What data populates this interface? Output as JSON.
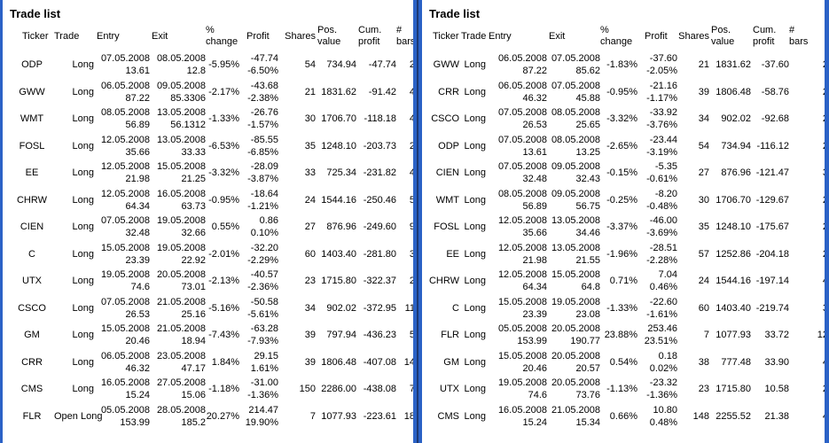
{
  "colors": {
    "panel_border": "#2b62c6",
    "panel_divider": "#1b3873",
    "text": "#000000",
    "background": "#ffffff"
  },
  "panels": [
    {
      "title": "Trade list",
      "columns": [
        "Ticker",
        "Trade",
        "Entry",
        "Exit",
        "%\nchange",
        "Profit",
        "Shares",
        "Pos.\nvalue",
        "Cum.\nprofit",
        "#\nbars"
      ],
      "rows": [
        {
          "ticker": "ODP",
          "trade": "Long",
          "entry_date": "07.05.2008",
          "entry_price": "13.61",
          "exit_date": "08.05.2008",
          "exit_price": "12.8",
          "pct_change": "-5.95%",
          "profit": "-47.74",
          "profit_pct": "-6.50%",
          "shares": "54",
          "pos_value": "734.94",
          "cum_profit": "-47.74",
          "bars": "2"
        },
        {
          "ticker": "GWW",
          "trade": "Long",
          "entry_date": "06.05.2008",
          "entry_price": "87.22",
          "exit_date": "09.05.2008",
          "exit_price": "85.3306",
          "pct_change": "-2.17%",
          "profit": "-43.68",
          "profit_pct": "-2.38%",
          "shares": "21",
          "pos_value": "1831.62",
          "cum_profit": "-91.42",
          "bars": "4"
        },
        {
          "ticker": "WMT",
          "trade": "Long",
          "entry_date": "08.05.2008",
          "entry_price": "56.89",
          "exit_date": "13.05.2008",
          "exit_price": "56.1312",
          "pct_change": "-1.33%",
          "profit": "-26.76",
          "profit_pct": "-1.57%",
          "shares": "30",
          "pos_value": "1706.70",
          "cum_profit": "-118.18",
          "bars": "4"
        },
        {
          "ticker": "FOSL",
          "trade": "Long",
          "entry_date": "12.05.2008",
          "entry_price": "35.66",
          "exit_date": "13.05.2008",
          "exit_price": "33.33",
          "pct_change": "-6.53%",
          "profit": "-85.55",
          "profit_pct": "-6.85%",
          "shares": "35",
          "pos_value": "1248.10",
          "cum_profit": "-203.73",
          "bars": "2"
        },
        {
          "ticker": "EE",
          "trade": "Long",
          "entry_date": "12.05.2008",
          "entry_price": "21.98",
          "exit_date": "15.05.2008",
          "exit_price": "21.25",
          "pct_change": "-3.32%",
          "profit": "-28.09",
          "profit_pct": "-3.87%",
          "shares": "33",
          "pos_value": "725.34",
          "cum_profit": "-231.82",
          "bars": "4"
        },
        {
          "ticker": "CHRW",
          "trade": "Long",
          "entry_date": "12.05.2008",
          "entry_price": "64.34",
          "exit_date": "16.05.2008",
          "exit_price": "63.73",
          "pct_change": "-0.95%",
          "profit": "-18.64",
          "profit_pct": "-1.21%",
          "shares": "24",
          "pos_value": "1544.16",
          "cum_profit": "-250.46",
          "bars": "5"
        },
        {
          "ticker": "CIEN",
          "trade": "Long",
          "entry_date": "07.05.2008",
          "entry_price": "32.48",
          "exit_date": "19.05.2008",
          "exit_price": "32.66",
          "pct_change": "0.55%",
          "profit": "0.86",
          "profit_pct": "0.10%",
          "shares": "27",
          "pos_value": "876.96",
          "cum_profit": "-249.60",
          "bars": "9"
        },
        {
          "ticker": "C",
          "trade": "Long",
          "entry_date": "15.05.2008",
          "entry_price": "23.39",
          "exit_date": "19.05.2008",
          "exit_price": "22.92",
          "pct_change": "-2.01%",
          "profit": "-32.20",
          "profit_pct": "-2.29%",
          "shares": "60",
          "pos_value": "1403.40",
          "cum_profit": "-281.80",
          "bars": "3"
        },
        {
          "ticker": "UTX",
          "trade": "Long",
          "entry_date": "19.05.2008",
          "entry_price": "74.6",
          "exit_date": "20.05.2008",
          "exit_price": "73.01",
          "pct_change": "-2.13%",
          "profit": "-40.57",
          "profit_pct": "-2.36%",
          "shares": "23",
          "pos_value": "1715.80",
          "cum_profit": "-322.37",
          "bars": "2"
        },
        {
          "ticker": "CSCO",
          "trade": "Long",
          "entry_date": "07.05.2008",
          "entry_price": "26.53",
          "exit_date": "21.05.2008",
          "exit_price": "25.16",
          "pct_change": "-5.16%",
          "profit": "-50.58",
          "profit_pct": "-5.61%",
          "shares": "34",
          "pos_value": "902.02",
          "cum_profit": "-372.95",
          "bars": "11"
        },
        {
          "ticker": "GM",
          "trade": "Long",
          "entry_date": "15.05.2008",
          "entry_price": "20.46",
          "exit_date": "21.05.2008",
          "exit_price": "18.94",
          "pct_change": "-7.43%",
          "profit": "-63.28",
          "profit_pct": "-7.93%",
          "shares": "39",
          "pos_value": "797.94",
          "cum_profit": "-436.23",
          "bars": "5"
        },
        {
          "ticker": "CRR",
          "trade": "Long",
          "entry_date": "06.05.2008",
          "entry_price": "46.32",
          "exit_date": "23.05.2008",
          "exit_price": "47.17",
          "pct_change": "1.84%",
          "profit": "29.15",
          "profit_pct": "1.61%",
          "shares": "39",
          "pos_value": "1806.48",
          "cum_profit": "-407.08",
          "bars": "14"
        },
        {
          "ticker": "CMS",
          "trade": "Long",
          "entry_date": "16.05.2008",
          "entry_price": "15.24",
          "exit_date": "27.05.2008",
          "exit_price": "15.06",
          "pct_change": "-1.18%",
          "profit": "-31.00",
          "profit_pct": "-1.36%",
          "shares": "150",
          "pos_value": "2286.00",
          "cum_profit": "-438.08",
          "bars": "7"
        },
        {
          "ticker": "FLR",
          "trade": "Open Long",
          "entry_date": "05.05.2008",
          "entry_price": "153.99",
          "exit_date": "28.05.2008",
          "exit_price": "185.2",
          "pct_change": "20.27%",
          "profit": "214.47",
          "profit_pct": "19.90%",
          "shares": "7",
          "pos_value": "1077.93",
          "cum_profit": "-223.61",
          "bars": "18"
        }
      ]
    },
    {
      "title": "Trade list",
      "columns": [
        "Ticker",
        "Trade",
        "Entry",
        "Exit",
        "%\nchange",
        "Profit",
        "Shares",
        "Pos.\nvalue",
        "Cum.\nprofit",
        "#\nbars"
      ],
      "rows": [
        {
          "ticker": "GWW",
          "trade": "Long",
          "entry_date": "06.05.2008",
          "entry_price": "87.22",
          "exit_date": "07.05.2008",
          "exit_price": "85.62",
          "pct_change": "-1.83%",
          "profit": "-37.60",
          "profit_pct": "-2.05%",
          "shares": "21",
          "pos_value": "1831.62",
          "cum_profit": "-37.60",
          "bars": "2"
        },
        {
          "ticker": "CRR",
          "trade": "Long",
          "entry_date": "06.05.2008",
          "entry_price": "46.32",
          "exit_date": "07.05.2008",
          "exit_price": "45.88",
          "pct_change": "-0.95%",
          "profit": "-21.16",
          "profit_pct": "-1.17%",
          "shares": "39",
          "pos_value": "1806.48",
          "cum_profit": "-58.76",
          "bars": "2"
        },
        {
          "ticker": "CSCO",
          "trade": "Long",
          "entry_date": "07.05.2008",
          "entry_price": "26.53",
          "exit_date": "08.05.2008",
          "exit_price": "25.65",
          "pct_change": "-3.32%",
          "profit": "-33.92",
          "profit_pct": "-3.76%",
          "shares": "34",
          "pos_value": "902.02",
          "cum_profit": "-92.68",
          "bars": "2"
        },
        {
          "ticker": "ODP",
          "trade": "Long",
          "entry_date": "07.05.2008",
          "entry_price": "13.61",
          "exit_date": "08.05.2008",
          "exit_price": "13.25",
          "pct_change": "-2.65%",
          "profit": "-23.44",
          "profit_pct": "-3.19%",
          "shares": "54",
          "pos_value": "734.94",
          "cum_profit": "-116.12",
          "bars": "2"
        },
        {
          "ticker": "CIEN",
          "trade": "Long",
          "entry_date": "07.05.2008",
          "entry_price": "32.48",
          "exit_date": "09.05.2008",
          "exit_price": "32.43",
          "pct_change": "-0.15%",
          "profit": "-5.35",
          "profit_pct": "-0.61%",
          "shares": "27",
          "pos_value": "876.96",
          "cum_profit": "-121.47",
          "bars": "3"
        },
        {
          "ticker": "WMT",
          "trade": "Long",
          "entry_date": "08.05.2008",
          "entry_price": "56.89",
          "exit_date": "09.05.2008",
          "exit_price": "56.75",
          "pct_change": "-0.25%",
          "profit": "-8.20",
          "profit_pct": "-0.48%",
          "shares": "30",
          "pos_value": "1706.70",
          "cum_profit": "-129.67",
          "bars": "2"
        },
        {
          "ticker": "FOSL",
          "trade": "Long",
          "entry_date": "12.05.2008",
          "entry_price": "35.66",
          "exit_date": "13.05.2008",
          "exit_price": "34.46",
          "pct_change": "-3.37%",
          "profit": "-46.00",
          "profit_pct": "-3.69%",
          "shares": "35",
          "pos_value": "1248.10",
          "cum_profit": "-175.67",
          "bars": "2"
        },
        {
          "ticker": "EE",
          "trade": "Long",
          "entry_date": "12.05.2008",
          "entry_price": "21.98",
          "exit_date": "13.05.2008",
          "exit_price": "21.55",
          "pct_change": "-1.96%",
          "profit": "-28.51",
          "profit_pct": "-2.28%",
          "shares": "57",
          "pos_value": "1252.86",
          "cum_profit": "-204.18",
          "bars": "2"
        },
        {
          "ticker": "CHRW",
          "trade": "Long",
          "entry_date": "12.05.2008",
          "entry_price": "64.34",
          "exit_date": "15.05.2008",
          "exit_price": "64.8",
          "pct_change": "0.71%",
          "profit": "7.04",
          "profit_pct": "0.46%",
          "shares": "24",
          "pos_value": "1544.16",
          "cum_profit": "-197.14",
          "bars": "4"
        },
        {
          "ticker": "C",
          "trade": "Long",
          "entry_date": "15.05.2008",
          "entry_price": "23.39",
          "exit_date": "19.05.2008",
          "exit_price": "23.08",
          "pct_change": "-1.33%",
          "profit": "-22.60",
          "profit_pct": "-1.61%",
          "shares": "60",
          "pos_value": "1403.40",
          "cum_profit": "-219.74",
          "bars": "3"
        },
        {
          "ticker": "FLR",
          "trade": "Long",
          "entry_date": "05.05.2008",
          "entry_price": "153.99",
          "exit_date": "20.05.2008",
          "exit_price": "190.77",
          "pct_change": "23.88%",
          "profit": "253.46",
          "profit_pct": "23.51%",
          "shares": "7",
          "pos_value": "1077.93",
          "cum_profit": "33.72",
          "bars": "12"
        },
        {
          "ticker": "GM",
          "trade": "Long",
          "entry_date": "15.05.2008",
          "entry_price": "20.46",
          "exit_date": "20.05.2008",
          "exit_price": "20.57",
          "pct_change": "0.54%",
          "profit": "0.18",
          "profit_pct": "0.02%",
          "shares": "38",
          "pos_value": "777.48",
          "cum_profit": "33.90",
          "bars": "4"
        },
        {
          "ticker": "UTX",
          "trade": "Long",
          "entry_date": "19.05.2008",
          "entry_price": "74.6",
          "exit_date": "20.05.2008",
          "exit_price": "73.76",
          "pct_change": "-1.13%",
          "profit": "-23.32",
          "profit_pct": "-1.36%",
          "shares": "23",
          "pos_value": "1715.80",
          "cum_profit": "10.58",
          "bars": "2"
        },
        {
          "ticker": "CMS",
          "trade": "Long",
          "entry_date": "16.05.2008",
          "entry_price": "15.24",
          "exit_date": "21.05.2008",
          "exit_price": "15.34",
          "pct_change": "0.66%",
          "profit": "10.80",
          "profit_pct": "0.48%",
          "shares": "148",
          "pos_value": "2255.52",
          "cum_profit": "21.38",
          "bars": "4"
        }
      ]
    }
  ]
}
